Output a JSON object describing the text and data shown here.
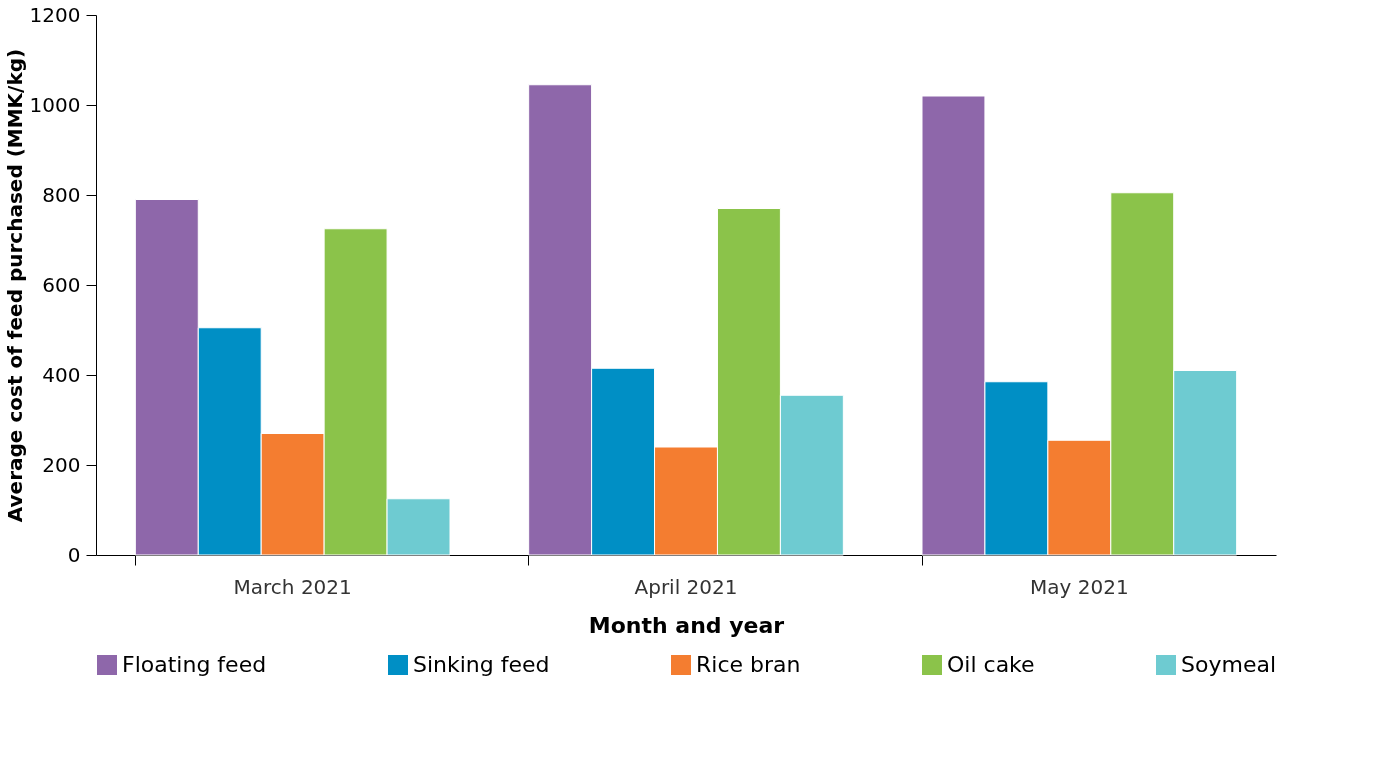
{
  "chart_data": {
    "type": "bar",
    "xlabel": "Month and year",
    "ylabel": "Average cost of feed purchased (MMK/kg)",
    "categories": [
      "March 2021",
      "April 2021",
      "May 2021"
    ],
    "series": [
      {
        "name": "Floating feed",
        "color": "#8e67aa",
        "values": [
          790,
          1045,
          1020
        ]
      },
      {
        "name": "Sinking feed",
        "color": "#008fc5",
        "values": [
          505,
          415,
          385
        ]
      },
      {
        "name": "Rice bran",
        "color": "#f47d30",
        "values": [
          270,
          240,
          255
        ]
      },
      {
        "name": "Oil cake",
        "color": "#8bc34a",
        "values": [
          725,
          770,
          805
        ]
      },
      {
        "name": "Soymeal",
        "color": "#6ecbd1",
        "values": [
          125,
          355,
          410
        ]
      }
    ],
    "ylim": [
      0,
      1200
    ],
    "yticks": [
      0,
      200,
      400,
      600,
      800,
      1000,
      1200
    ],
    "grid": false,
    "legend": "bottom"
  }
}
